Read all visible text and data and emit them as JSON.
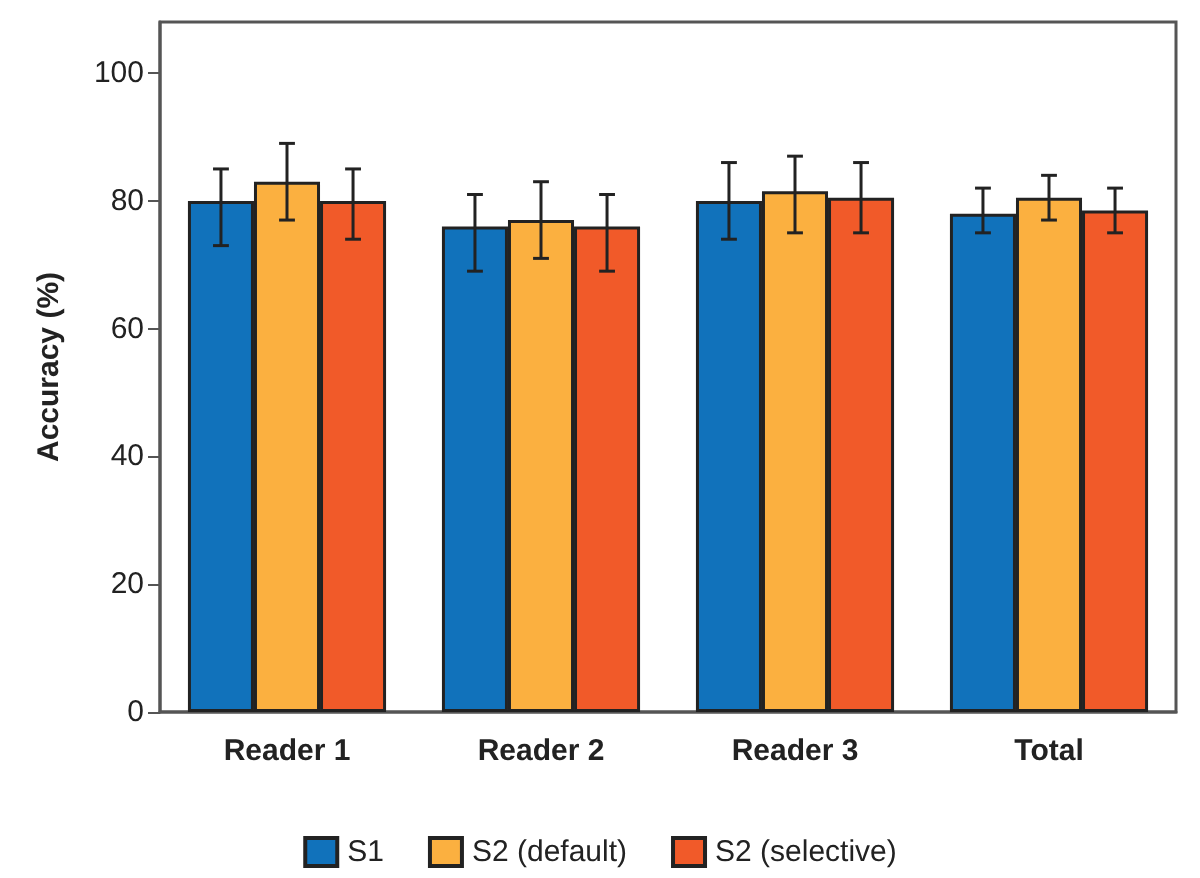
{
  "chart_data": {
    "type": "bar",
    "ylabel": "Accuracy (%)",
    "categories": [
      "Reader 1",
      "Reader 2",
      "Reader 3",
      "Total"
    ],
    "series": [
      {
        "name": "S1",
        "color": "#1172bb",
        "values": [
          80,
          76,
          80,
          78
        ],
        "errors": [
          [
            73,
            85
          ],
          [
            69,
            81
          ],
          [
            74,
            86
          ],
          [
            75,
            82
          ]
        ]
      },
      {
        "name": "S2 (default)",
        "color": "#fbb040",
        "values": [
          83,
          77,
          81.5,
          80.5
        ],
        "errors": [
          [
            77,
            89
          ],
          [
            71,
            83
          ],
          [
            75,
            87
          ],
          [
            77,
            84
          ]
        ]
      },
      {
        "name": "S2 (selective)",
        "color": "#f15a29",
        "values": [
          80,
          76,
          80.5,
          78.5
        ],
        "errors": [
          [
            74,
            85
          ],
          [
            69,
            81
          ],
          [
            75,
            86
          ],
          [
            75,
            82
          ]
        ]
      }
    ],
    "ylim": [
      0,
      108
    ],
    "yticks": [
      0,
      20,
      40,
      60,
      80,
      100
    ],
    "grid": false,
    "legend": "bottom"
  }
}
